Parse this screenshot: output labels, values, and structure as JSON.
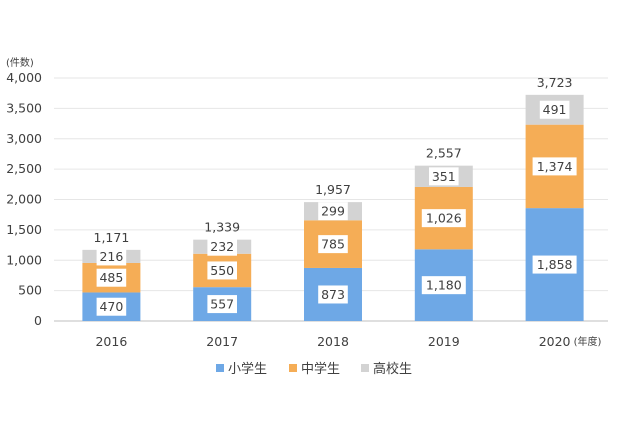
{
  "chart_data": {
    "type": "bar",
    "stacked": true,
    "categories": [
      "2016",
      "2017",
      "2018",
      "2019",
      "2020"
    ],
    "series": [
      {
        "name": "小学生",
        "color": "#6ea8e6",
        "values": [
          470,
          557,
          873,
          1180,
          1858
        ]
      },
      {
        "name": "中学生",
        "color": "#f5ad56",
        "values": [
          485,
          550,
          785,
          1026,
          1374
        ]
      },
      {
        "name": "高校生",
        "color": "#d3d3d3",
        "values": [
          216,
          232,
          299,
          351,
          491
        ]
      }
    ],
    "totals": [
      1171,
      1339,
      1957,
      2557,
      3723
    ],
    "ylim": [
      0,
      4000
    ],
    "yticks": [
      0,
      500,
      1000,
      1500,
      2000,
      2500,
      3000,
      3500,
      4000
    ],
    "y_unit": "(件数)",
    "x_unit": "(年度)",
    "grid": true,
    "legend_position": "bottom"
  }
}
